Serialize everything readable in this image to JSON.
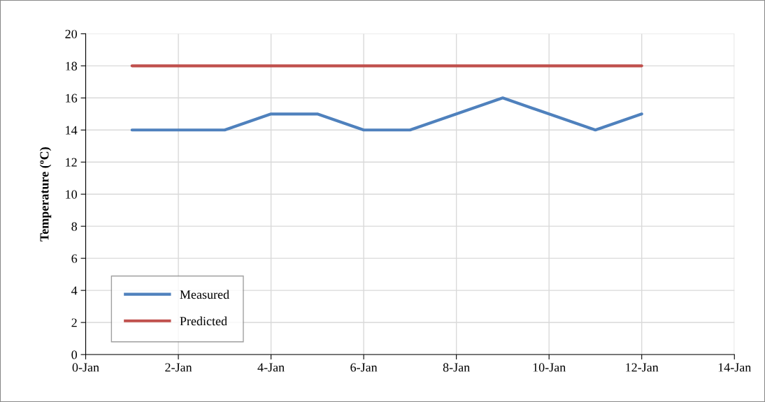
{
  "chart_data": {
    "type": "line",
    "ylabel": "Temperature (ºC)",
    "categories": [
      "0-Jan",
      null,
      "2-Jan",
      null,
      "4-Jan",
      null,
      "6-Jan",
      null,
      "8-Jan",
      null,
      "10-Jan",
      null,
      "12-Jan",
      null,
      "14-Jan"
    ],
    "series": [
      {
        "name": "Measured",
        "color": "#4f81bd",
        "values": [
          null,
          14,
          14,
          14,
          15,
          15,
          14,
          14,
          15,
          16,
          15,
          14,
          15,
          null,
          null
        ]
      },
      {
        "name": "Predicted",
        "color": "#c0504d",
        "values": [
          null,
          18,
          18,
          18,
          18,
          18,
          18,
          18,
          18,
          18,
          18,
          18,
          18,
          null,
          null
        ]
      }
    ],
    "ylim": [
      0,
      20
    ],
    "yticks": [
      0,
      2,
      4,
      6,
      8,
      10,
      12,
      14,
      16,
      18,
      20
    ],
    "grid": true,
    "legend": "bottom left",
    "marker": "none",
    "line_style": "solid"
  }
}
